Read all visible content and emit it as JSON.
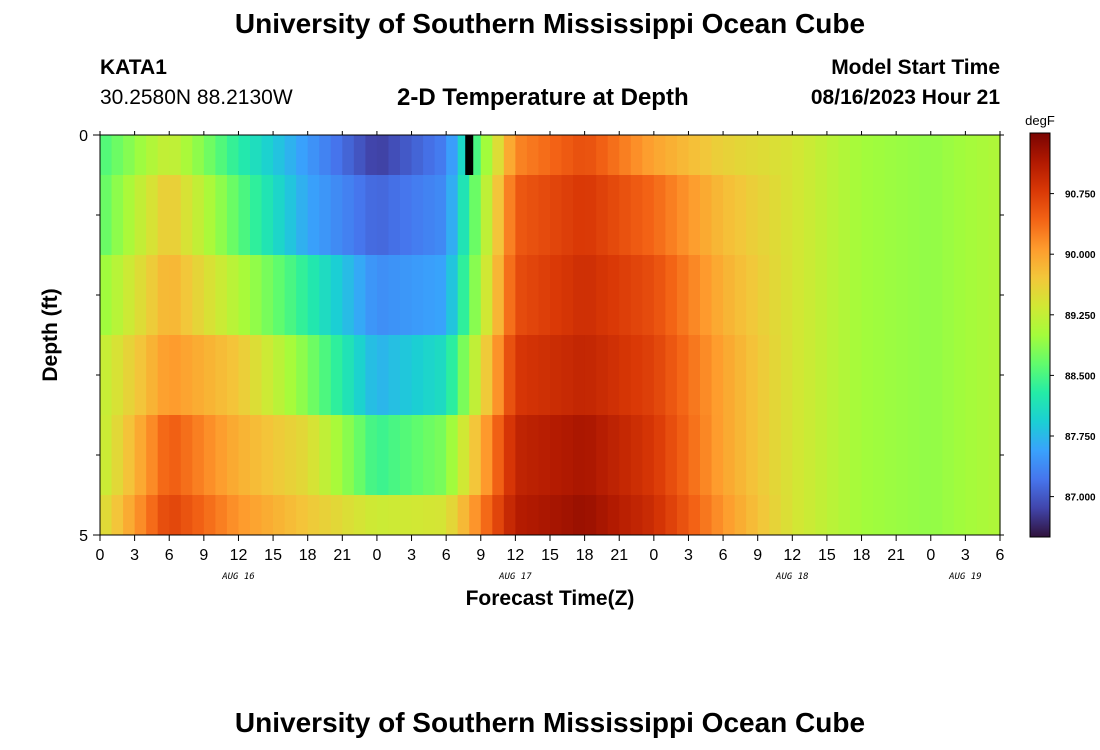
{
  "header": {
    "title": "University of Southern Mississippi Ocean Cube",
    "station": "KATA1",
    "coords": "30.2580N  88.2130W",
    "subtitle": "2-D Temperature at Depth",
    "model_start_label": "Model Start Time",
    "model_start_time": "08/16/2023 Hour 21"
  },
  "footer": {
    "title": "University of Southern Mississippi Ocean Cube"
  },
  "chart_data": {
    "type": "heatmap",
    "title": "2-D Temperature at Depth",
    "xlabel": "Forecast Time(Z)",
    "ylabel": "Depth (ft)",
    "x_hours": [
      0,
      6,
      12,
      18,
      24,
      30,
      36,
      42,
      48,
      54,
      60,
      66,
      72,
      78
    ],
    "depth_rows": [
      "0-0.5 ft",
      "0.5-1.5 ft",
      "1.5-2.5 ft",
      "2.5-3.5 ft",
      "3.5-4.5 ft",
      "4.5-5 ft"
    ],
    "values_degF": [
      [
        88.5,
        89.3,
        88.3,
        87.5,
        86.8,
        87.3,
        90.2,
        90.6,
        90.0,
        89.6,
        89.4,
        89.0,
        88.9,
        89.1
      ],
      [
        88.6,
        89.7,
        88.6,
        87.6,
        87.1,
        87.4,
        90.5,
        90.8,
        90.4,
        89.8,
        89.4,
        89.0,
        88.9,
        89.1
      ],
      [
        88.9,
        89.9,
        89.1,
        88.3,
        87.4,
        87.6,
        90.6,
        90.9,
        90.6,
        89.9,
        89.4,
        89.0,
        88.9,
        89.1
      ],
      [
        89.2,
        90.1,
        89.7,
        88.8,
        87.7,
        88.1,
        90.8,
        91.0,
        90.7,
        90.0,
        89.4,
        89.0,
        88.9,
        89.1
      ],
      [
        89.2,
        90.5,
        89.9,
        89.5,
        88.4,
        88.8,
        91.0,
        91.2,
        90.8,
        90.0,
        89.4,
        89.0,
        88.9,
        89.1
      ],
      [
        89.4,
        90.7,
        90.1,
        89.7,
        89.3,
        89.4,
        91.1,
        91.3,
        90.9,
        90.1,
        89.4,
        89.0,
        88.9,
        89.1
      ]
    ],
    "missing_cell": {
      "x_hour": 32,
      "row": "0-0.5 ft"
    },
    "x_tick_hours": [
      0,
      3,
      6,
      9,
      12,
      15,
      18,
      21,
      24,
      27,
      30,
      33,
      36,
      39,
      42,
      45,
      48,
      51,
      54,
      57,
      60,
      63,
      66,
      69,
      72,
      75,
      78
    ],
    "x_tick_labels": [
      "0",
      "3",
      "6",
      "9",
      "12",
      "15",
      "18",
      "21",
      "0",
      "3",
      "6",
      "9",
      "12",
      "15",
      "18",
      "21",
      "0",
      "3",
      "6",
      "9",
      "12",
      "15",
      "18",
      "21",
      "0",
      "3",
      "6"
    ],
    "day_labels": [
      {
        "label": "AUG 16",
        "x_hour": 12
      },
      {
        "label": "AUG 17",
        "x_hour": 36
      },
      {
        "label": "AUG 18",
        "x_hour": 60
      },
      {
        "label": "AUG 19",
        "x_hour": 75
      }
    ],
    "y_tick_labels": [
      {
        "depth": 0,
        "label": "0"
      },
      {
        "depth": 5,
        "label": "5"
      }
    ],
    "y_minor_ticks": [
      1,
      2,
      3,
      4
    ],
    "xlim": [
      0,
      78
    ],
    "ylim": [
      0,
      5
    ],
    "colorbar": {
      "unit": "degF",
      "min": 86.5,
      "max": 91.5,
      "labeled_ticks": [
        87.0,
        87.75,
        88.5,
        89.25,
        90.0,
        90.75
      ],
      "tick_labels": [
        "87.000",
        "87.750",
        "88.500",
        "89.250",
        "90.000",
        "90.750"
      ],
      "colors": [
        "#30123b",
        "#4145ab",
        "#4675ed",
        "#39a2fc",
        "#1bcfd4",
        "#24eca6",
        "#61fc6c",
        "#a4fc3b",
        "#d1e834",
        "#f3c63a",
        "#fe9b2d",
        "#f36315",
        "#d93806",
        "#b11901",
        "#7a0402"
      ]
    }
  }
}
